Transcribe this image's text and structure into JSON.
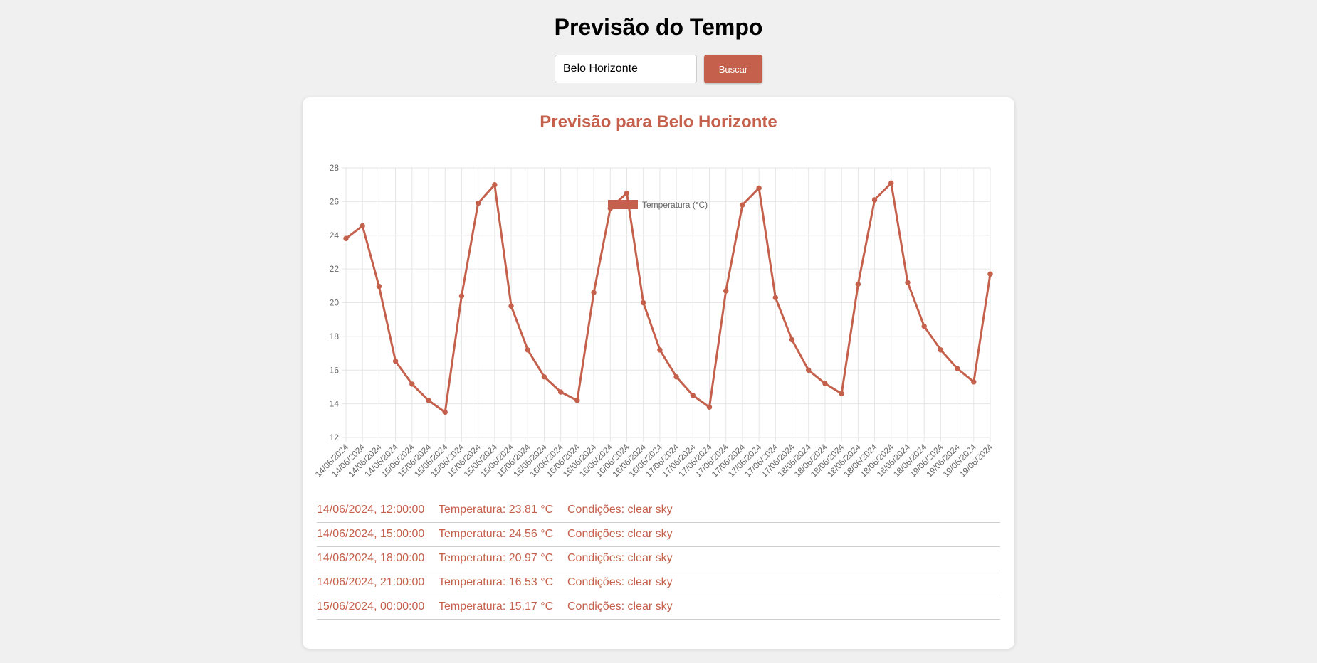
{
  "header": {
    "title": "Previsão do Tempo"
  },
  "search": {
    "value": "Belo Horizonte",
    "button_label": "Buscar"
  },
  "forecast": {
    "title": "Previsão para Belo Horizonte"
  },
  "colors": {
    "accent": "#c4604b",
    "background": "#f0f0f0",
    "card": "#ffffff",
    "grid": "#e6e6e6"
  },
  "chart_data": {
    "type": "line",
    "series": [
      {
        "name": "Temperatura (°C)",
        "values": [
          23.81,
          24.56,
          20.97,
          16.53,
          15.17,
          14.2,
          13.5,
          20.4,
          25.9,
          27.0,
          19.8,
          17.2,
          15.6,
          14.7,
          14.2,
          20.6,
          25.6,
          26.5,
          20.0,
          17.2,
          15.6,
          14.5,
          13.8,
          20.7,
          25.8,
          26.8,
          20.3,
          17.8,
          16.0,
          15.2,
          14.6,
          21.1,
          26.1,
          27.1,
          21.2,
          18.6,
          17.2,
          16.1,
          15.3,
          21.7
        ]
      }
    ],
    "categories": [
      "14/06/2024",
      "14/06/2024",
      "14/06/2024",
      "14/06/2024",
      "15/06/2024",
      "15/06/2024",
      "15/06/2024",
      "15/06/2024",
      "15/06/2024",
      "15/06/2024",
      "15/06/2024",
      "15/06/2024",
      "16/06/2024",
      "16/06/2024",
      "16/06/2024",
      "16/06/2024",
      "16/06/2024",
      "16/06/2024",
      "16/06/2024",
      "16/06/2024",
      "17/06/2024",
      "17/06/2024",
      "17/06/2024",
      "17/06/2024",
      "17/06/2024",
      "17/06/2024",
      "17/06/2024",
      "17/06/2024",
      "18/06/2024",
      "18/06/2024",
      "18/06/2024",
      "18/06/2024",
      "18/06/2024",
      "18/06/2024",
      "18/06/2024",
      "18/06/2024",
      "19/06/2024",
      "19/06/2024",
      "19/06/2024",
      "19/06/2024"
    ],
    "yticks": [
      12,
      14,
      16,
      18,
      20,
      22,
      24,
      26,
      28
    ],
    "ylim": [
      12,
      28
    ],
    "legend": "top-center",
    "grid": true,
    "title": "",
    "xlabel": "",
    "ylabel": ""
  },
  "entries": [
    {
      "datetime": "14/06/2024, 12:00:00",
      "temperature": "Temperatura: 23.81 °C",
      "conditions": "Condições: clear sky"
    },
    {
      "datetime": "14/06/2024, 15:00:00",
      "temperature": "Temperatura: 24.56 °C",
      "conditions": "Condições: clear sky"
    },
    {
      "datetime": "14/06/2024, 18:00:00",
      "temperature": "Temperatura: 20.97 °C",
      "conditions": "Condições: clear sky"
    },
    {
      "datetime": "14/06/2024, 21:00:00",
      "temperature": "Temperatura: 16.53 °C",
      "conditions": "Condições: clear sky"
    },
    {
      "datetime": "15/06/2024, 00:00:00",
      "temperature": "Temperatura: 15.17 °C",
      "conditions": "Condições: clear sky"
    }
  ]
}
